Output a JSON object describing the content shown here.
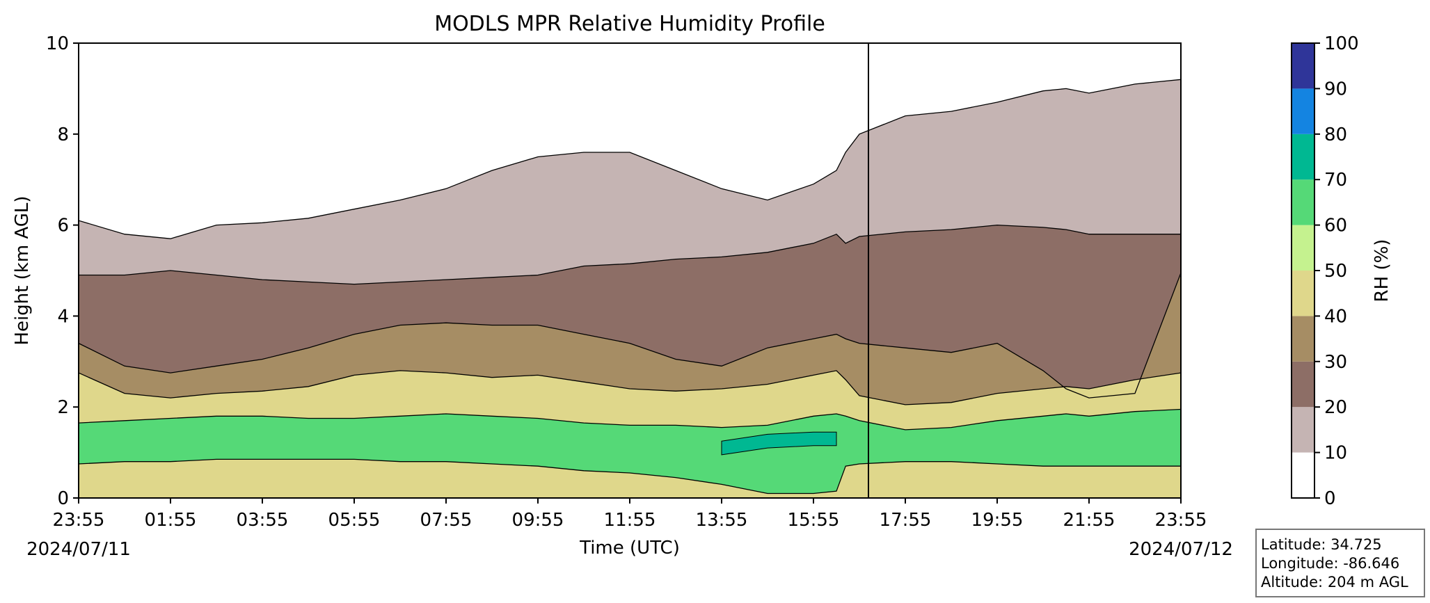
{
  "chart_data": {
    "type": "heatmap",
    "title": "MODLS MPR Relative Humidity Profile",
    "xlabel": "Time (UTC)",
    "ylabel": "Height (km AGL)",
    "x_ticks": [
      "23:55",
      "01:55",
      "03:55",
      "05:55",
      "07:55",
      "09:55",
      "11:55",
      "13:55",
      "15:55",
      "17:55",
      "19:55",
      "21:55",
      "23:55"
    ],
    "start_date": "2024/07/11",
    "end_date": "2024/07/12",
    "xlim_hours": [
      0,
      24
    ],
    "ylim": [
      0,
      10
    ],
    "y_ticks": [
      0,
      2,
      4,
      6,
      8,
      10
    ],
    "colorbar": {
      "label": "RH (%)",
      "levels": [
        0,
        10,
        20,
        30,
        40,
        50,
        60,
        70,
        80,
        90,
        100
      ],
      "colors": [
        "#ffffff",
        "#c5b4b3",
        "#8d6e66",
        "#a68d64",
        "#dfd78b",
        "#c5f28f",
        "#55d977",
        "#00b892",
        "#1484e1",
        "#2f3599"
      ]
    },
    "contour_levels_km": {
      "hours": [
        0,
        1,
        2,
        3,
        4,
        5,
        6,
        7,
        8,
        9,
        10,
        11,
        12,
        13,
        14,
        15,
        16,
        16.5,
        16.7,
        17,
        18,
        19,
        20,
        21,
        21.5,
        22,
        23,
        24
      ],
      "rh60": [
        0.75,
        0.8,
        0.8,
        0.85,
        0.85,
        0.85,
        0.85,
        0.8,
        0.8,
        0.75,
        0.7,
        0.6,
        0.55,
        0.45,
        0.3,
        0.1,
        0.1,
        0.15,
        0.7,
        0.75,
        0.8,
        0.8,
        0.75,
        0.7,
        0.7,
        0.7,
        0.7,
        0.7
      ],
      "rh70": [
        null,
        null,
        null,
        null,
        null,
        null,
        null,
        null,
        null,
        null,
        null,
        null,
        null,
        null,
        1.1,
        1.25,
        1.3,
        1.3,
        null,
        null,
        null,
        null,
        null,
        null,
        null,
        null,
        null,
        null
      ],
      "rh50": [
        1.65,
        1.7,
        1.75,
        1.8,
        1.8,
        1.75,
        1.75,
        1.8,
        1.85,
        1.8,
        1.75,
        1.65,
        1.6,
        1.6,
        1.55,
        1.6,
        1.8,
        1.85,
        1.8,
        1.7,
        1.5,
        1.55,
        1.7,
        1.8,
        1.85,
        1.8,
        1.9,
        1.95
      ],
      "rh40": [
        2.75,
        2.3,
        2.2,
        2.3,
        2.35,
        2.45,
        2.7,
        2.8,
        2.75,
        2.65,
        2.7,
        2.55,
        2.4,
        2.35,
        2.4,
        2.5,
        2.7,
        2.8,
        2.6,
        2.25,
        2.05,
        2.1,
        2.3,
        2.4,
        2.45,
        2.4,
        2.6,
        2.75
      ],
      "rh30": [
        3.4,
        2.9,
        2.75,
        2.9,
        3.05,
        3.3,
        3.6,
        3.8,
        3.85,
        3.8,
        3.8,
        3.6,
        3.4,
        3.05,
        2.9,
        3.3,
        3.5,
        3.6,
        3.5,
        3.4,
        3.3,
        3.2,
        3.4,
        2.8,
        2.4,
        2.2,
        2.3,
        4.95
      ],
      "rh20": [
        4.9,
        4.9,
        5.0,
        4.9,
        4.8,
        4.75,
        4.7,
        4.75,
        4.8,
        4.85,
        4.9,
        5.1,
        5.15,
        5.25,
        5.3,
        5.4,
        5.6,
        5.8,
        5.6,
        5.75,
        5.85,
        5.9,
        6.0,
        5.95,
        5.9,
        5.8,
        5.8,
        5.8
      ],
      "rh10": [
        6.1,
        5.8,
        5.7,
        6.0,
        6.05,
        6.15,
        6.35,
        6.55,
        6.8,
        7.2,
        7.5,
        7.6,
        7.6,
        7.2,
        6.8,
        6.55,
        6.9,
        7.2,
        7.6,
        8.0,
        8.4,
        8.5,
        8.7,
        8.95,
        9.0,
        8.9,
        9.1,
        9.2
      ]
    }
  },
  "info_box": {
    "latitude": "Latitude: 34.725",
    "longitude": "Longitude: -86.646",
    "altitude": "Altitude: 204 m AGL"
  }
}
